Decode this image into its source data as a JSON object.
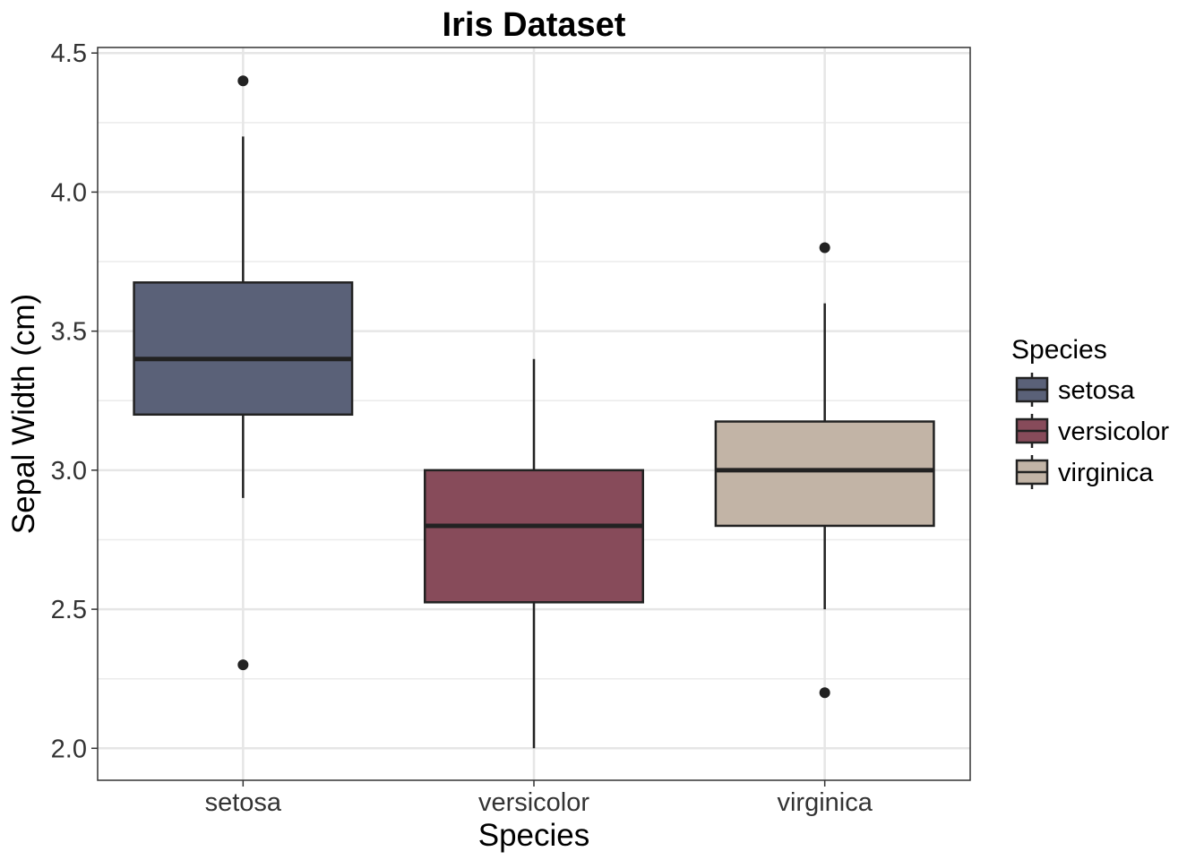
{
  "chart_data": {
    "type": "boxplot",
    "title": "Iris Dataset",
    "xlabel": "Species",
    "ylabel": "Sepal Width (cm)",
    "ylim": [
      1.885,
      4.52
    ],
    "yticks": [
      2.0,
      2.5,
      3.0,
      3.5,
      4.0,
      4.5
    ],
    "ytick_labels": [
      "2.0",
      "2.5",
      "3.0",
      "3.5",
      "4.0",
      "4.5"
    ],
    "categories": [
      "setosa",
      "versicolor",
      "virginica"
    ],
    "grid": true,
    "legend": {
      "title": "Species",
      "placement": "right",
      "entries": [
        "setosa",
        "versicolor",
        "virginica"
      ]
    },
    "series": [
      {
        "name": "setosa",
        "color": "#5a6178",
        "whisker_low": 2.9,
        "q1": 3.2,
        "median": 3.4,
        "q3": 3.675,
        "whisker_high": 4.2,
        "outliers": [
          4.4,
          2.3
        ]
      },
      {
        "name": "versicolor",
        "color": "#874b5a",
        "whisker_low": 2.0,
        "q1": 2.525,
        "median": 2.8,
        "q3": 3.0,
        "whisker_high": 3.4,
        "outliers": []
      },
      {
        "name": "virginica",
        "color": "#c2b4a6",
        "whisker_low": 2.5,
        "q1": 2.8,
        "median": 3.0,
        "q3": 3.175,
        "whisker_high": 3.6,
        "outliers": [
          3.8,
          2.2
        ]
      }
    ]
  }
}
